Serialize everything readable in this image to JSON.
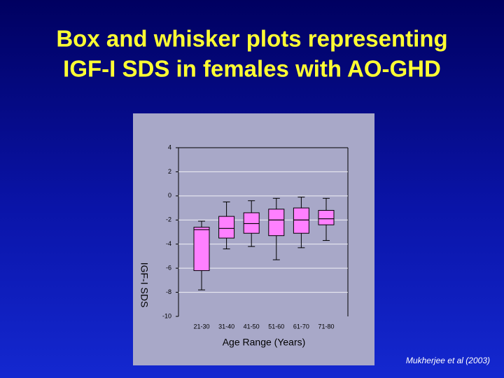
{
  "chart_data": {
    "type": "box",
    "title": [
      "Box and whisker plots representing",
      "IGF-I SDS in females with AO-GHD"
    ],
    "y_label": "IGF-I SDS",
    "x_label": "Age Range (Years)",
    "source": "Mukherjee et al (2003)",
    "categories": [
      "21-30",
      "31-40",
      "41-50",
      "51-60",
      "61-70",
      "71-80"
    ],
    "whisker_high": [
      -2.1,
      -0.5,
      -0.4,
      -0.2,
      -0.1,
      -0.2
    ],
    "q3": [
      -2.6,
      -1.7,
      -1.4,
      -1.1,
      -1.0,
      -1.2
    ],
    "median": [
      -2.8,
      -2.7,
      -2.3,
      -2.0,
      -2.0,
      -1.9
    ],
    "q1": [
      -6.2,
      -3.5,
      -3.1,
      -3.3,
      -3.1,
      -2.4
    ],
    "whisker_low": [
      -7.8,
      -4.4,
      -4.2,
      -5.3,
      -4.3,
      -3.7
    ],
    "color": "#ff80ff",
    "ylim": [
      -10,
      4
    ],
    "yticks": [
      -10,
      -8,
      -6,
      -4,
      -2,
      0,
      2,
      4
    ],
    "grid": true
  }
}
